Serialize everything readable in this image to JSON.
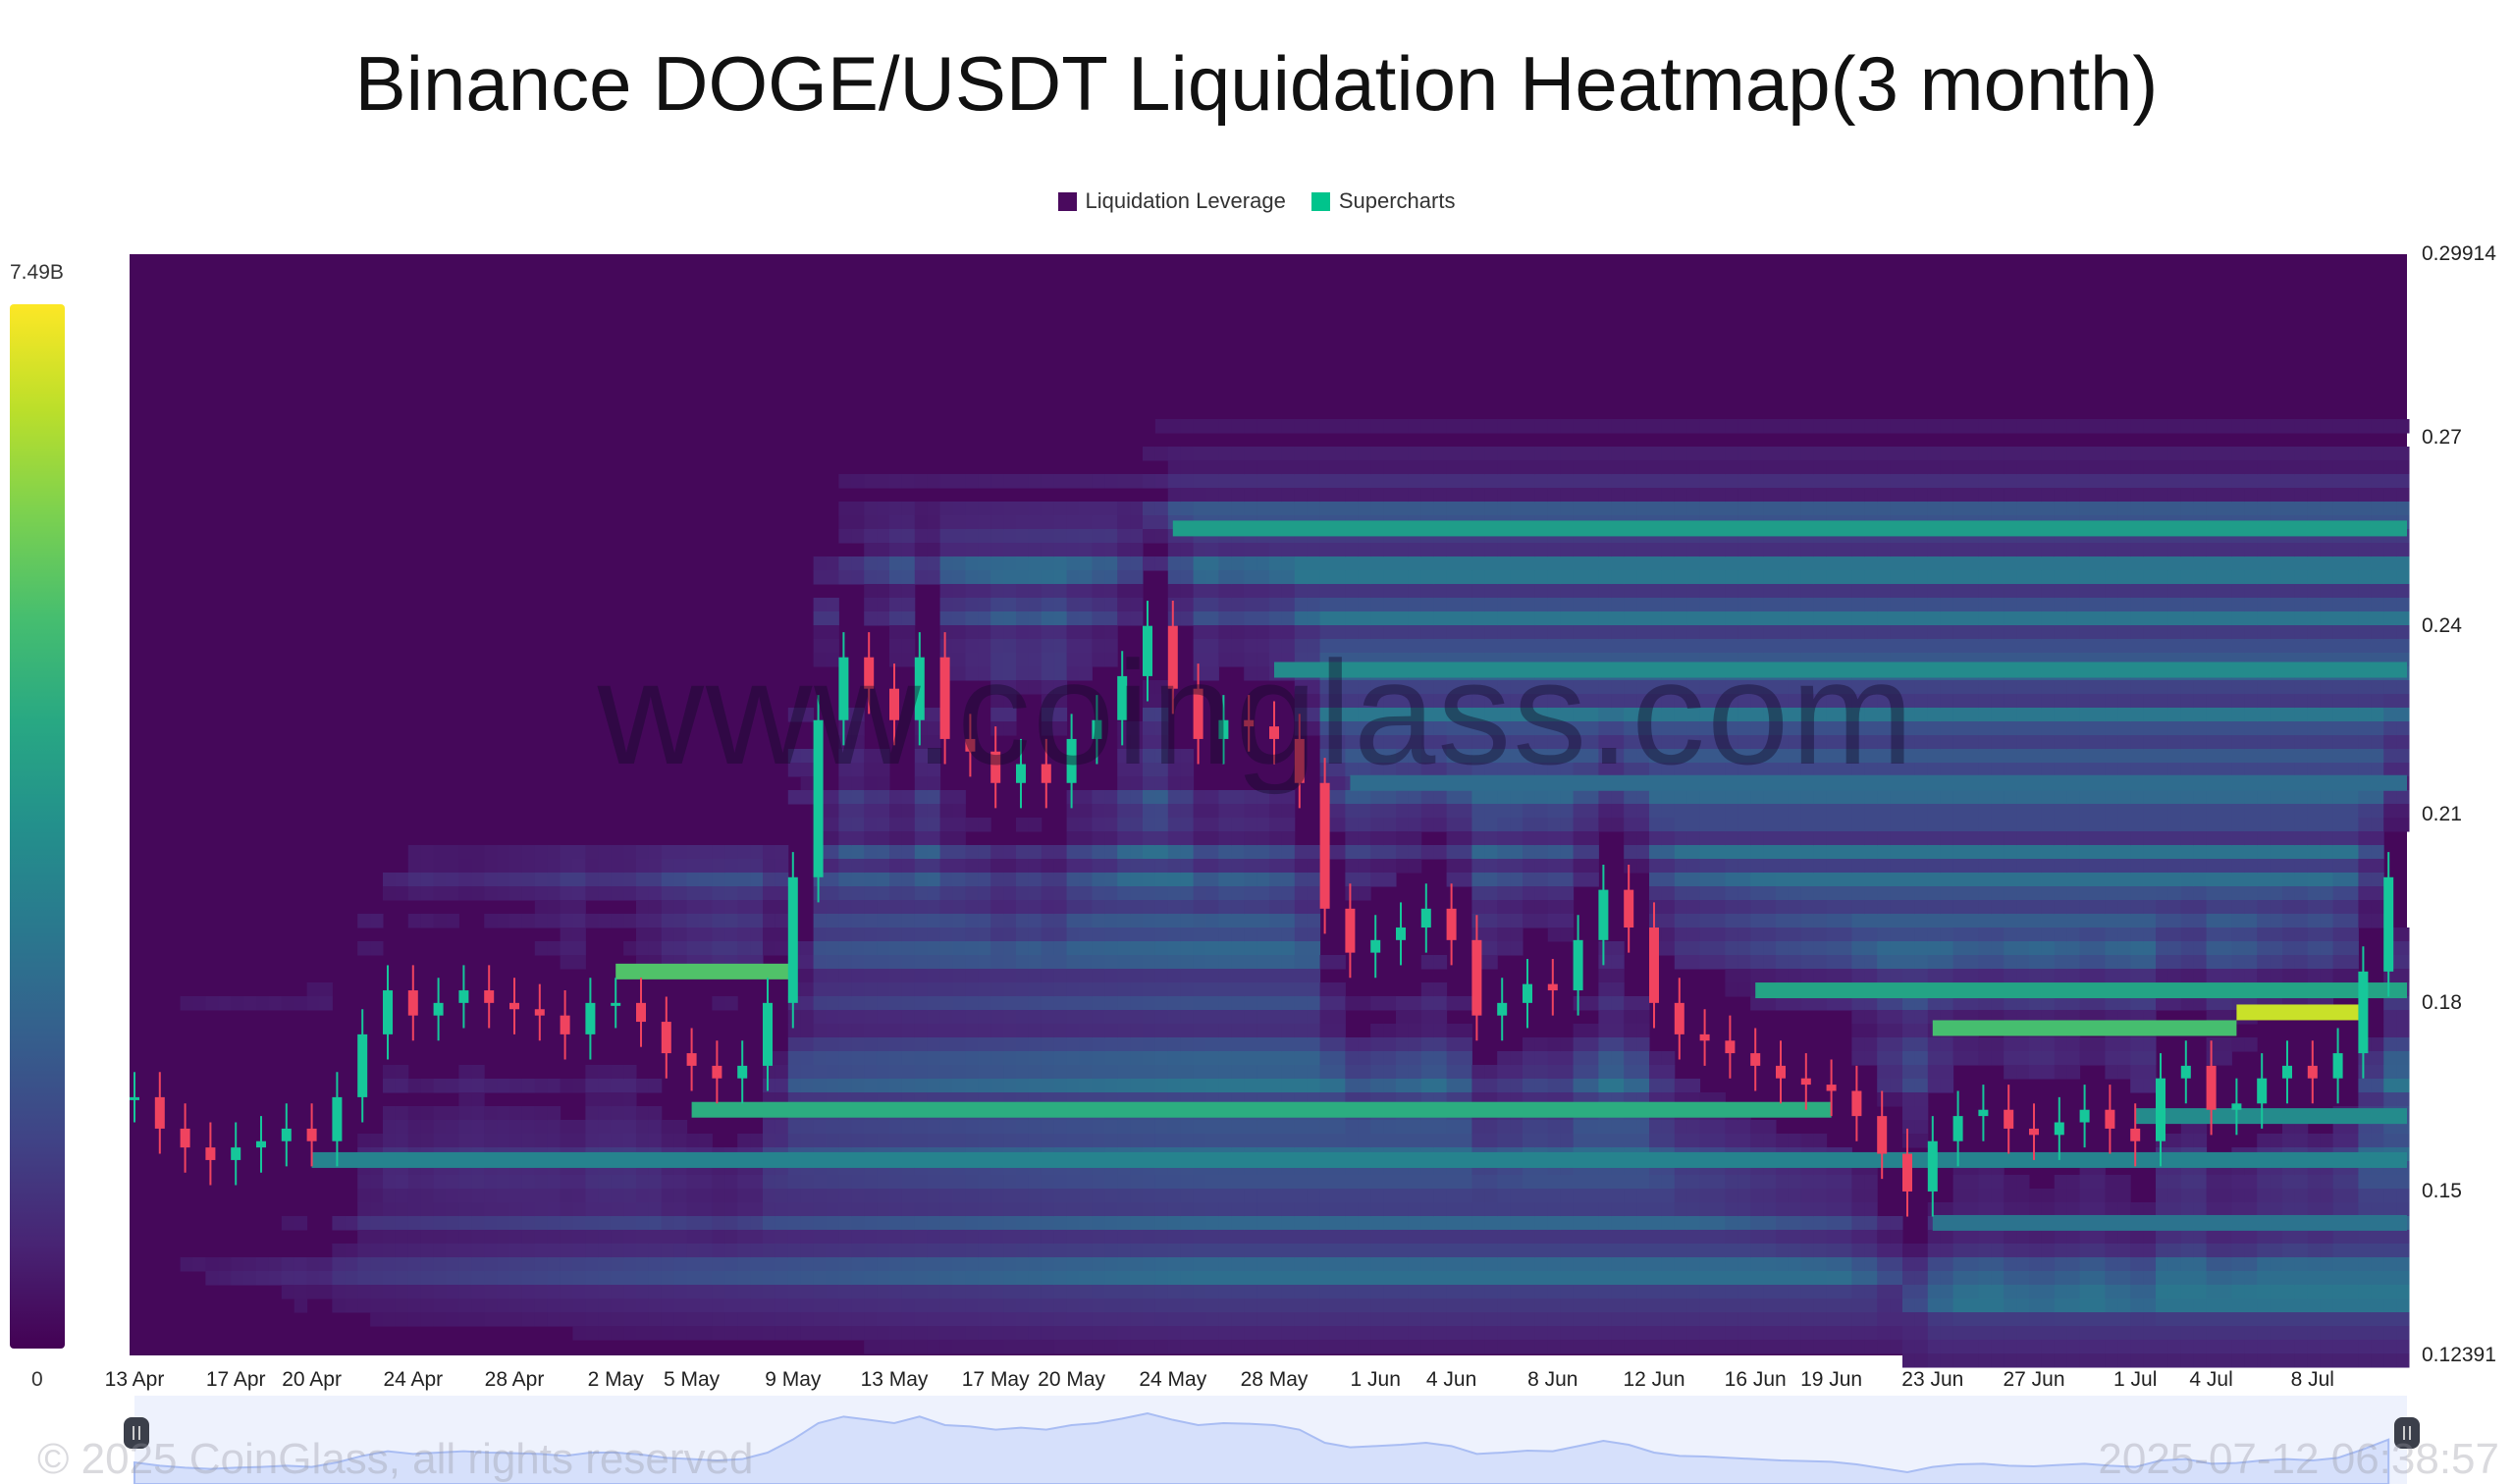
{
  "title": "Binance DOGE/USDT Liquidation Heatmap(3 month)",
  "legend": [
    {
      "label": "Liquidation Leverage",
      "color": "#4a0a5e"
    },
    {
      "label": "Supercharts",
      "color": "#00c48c"
    }
  ],
  "colorbar": {
    "max_label": "7.49B",
    "min_label": "0",
    "colormap": "viridis"
  },
  "watermark": "www.coinglass.com",
  "footer": {
    "copyright": "© 2025 CoinGlass, all rights reserved",
    "timestamp": "2025-07-12 06:38:57"
  },
  "chart_data": {
    "type": "heatmap",
    "title": "Binance DOGE/USDT Liquidation Heatmap(3 month)",
    "ylim": [
      0.12391,
      0.29914
    ],
    "y_ticks": [
      "0.29914",
      "0.27",
      "0.24",
      "0.21",
      "0.18",
      "0.15",
      "0.12391"
    ],
    "y_tick_values": [
      0.29914,
      0.27,
      0.24,
      0.21,
      0.18,
      0.15,
      0.12391
    ],
    "x_ticks": [
      "13 Apr",
      "17 Apr",
      "20 Apr",
      "24 Apr",
      "28 Apr",
      "2 May",
      "5 May",
      "9 May",
      "13 May",
      "17 May",
      "20 May",
      "24 May",
      "28 May",
      "1 Jun",
      "4 Jun",
      "8 Jun",
      "12 Jun",
      "16 Jun",
      "19 Jun",
      "23 Jun",
      "27 Jun",
      "1 Jul",
      "4 Jul",
      "8 Jul"
    ],
    "x_tick_days": [
      0,
      4,
      7,
      11,
      15,
      19,
      22,
      26,
      30,
      34,
      37,
      41,
      45,
      49,
      52,
      56,
      60,
      64,
      67,
      71,
      75,
      79,
      82,
      86
    ],
    "start_date": "13 Apr",
    "price_series": {
      "name": "Supercharts",
      "close": [
        0.165,
        0.16,
        0.157,
        0.155,
        0.157,
        0.158,
        0.16,
        0.158,
        0.165,
        0.175,
        0.182,
        0.178,
        0.18,
        0.182,
        0.18,
        0.179,
        0.178,
        0.175,
        0.18,
        0.18,
        0.177,
        0.172,
        0.17,
        0.168,
        0.17,
        0.18,
        0.2,
        0.225,
        0.235,
        0.23,
        0.225,
        0.235,
        0.222,
        0.22,
        0.215,
        0.218,
        0.215,
        0.222,
        0.225,
        0.232,
        0.24,
        0.23,
        0.222,
        0.225,
        0.224,
        0.222,
        0.215,
        0.195,
        0.188,
        0.19,
        0.192,
        0.195,
        0.19,
        0.178,
        0.18,
        0.183,
        0.182,
        0.19,
        0.198,
        0.192,
        0.18,
        0.175,
        0.174,
        0.172,
        0.17,
        0.168,
        0.167,
        0.166,
        0.162,
        0.156,
        0.15,
        0.158,
        0.162,
        0.163,
        0.16,
        0.159,
        0.161,
        0.163,
        0.16,
        0.158,
        0.168,
        0.17,
        0.163,
        0.164,
        0.168,
        0.17,
        0.168,
        0.172,
        0.185,
        0.2
      ]
    },
    "liquidation_bands": [
      {
        "price": 0.2555,
        "from_day": 41,
        "intensity": 0.55
      },
      {
        "price": 0.233,
        "from_day": 45,
        "intensity": 0.48
      },
      {
        "price": 0.215,
        "from_day": 48,
        "intensity": 0.35
      },
      {
        "price": 0.163,
        "from_day": 22,
        "to_day": 67,
        "intensity": 0.62
      },
      {
        "price": 0.155,
        "from_day": 7,
        "intensity": 0.45
      },
      {
        "price": 0.185,
        "from_day": 19,
        "to_day": 26,
        "intensity": 0.72
      },
      {
        "price": 0.182,
        "from_day": 64,
        "intensity": 0.58
      },
      {
        "price": 0.1785,
        "from_day": 83,
        "to_day": 88,
        "intensity": 0.92
      },
      {
        "price": 0.176,
        "from_day": 71,
        "to_day": 83,
        "intensity": 0.7
      },
      {
        "price": 0.162,
        "from_day": 79,
        "intensity": 0.48
      },
      {
        "price": 0.145,
        "from_day": 71,
        "intensity": 0.38
      }
    ]
  }
}
